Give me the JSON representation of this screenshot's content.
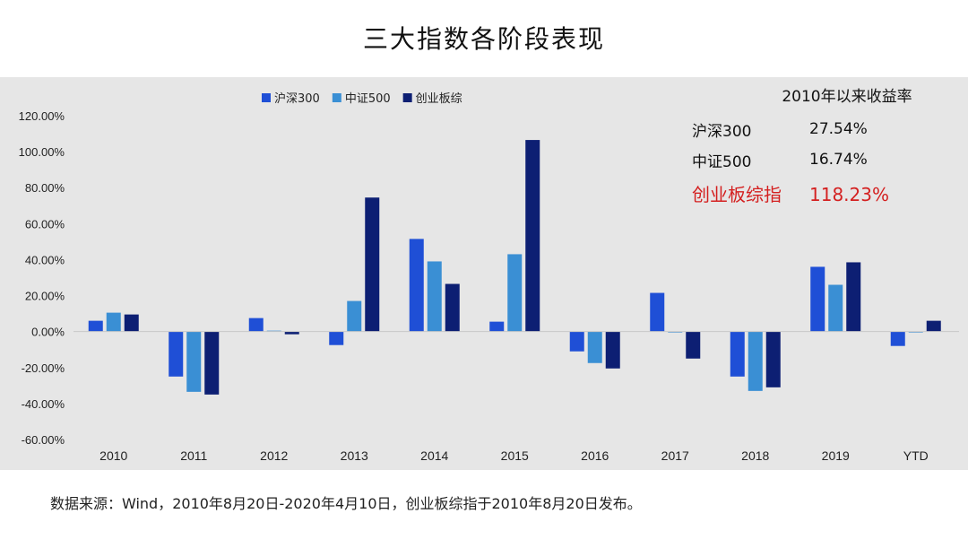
{
  "title": "三大指数各阶段表现",
  "source_note": "数据来源：Wind，2010年8月20日-2020年4月10日，创业板综指于2010年8月20日发布。",
  "summary": {
    "heading": "2010年以来收益率",
    "rows": [
      {
        "name": "沪深300",
        "value": "27.54%",
        "color": "#111111"
      },
      {
        "name": "中证500",
        "value": "16.74%",
        "color": "#111111"
      },
      {
        "name": "创业板综指",
        "value": "118.23%",
        "color": "#d42020"
      }
    ]
  },
  "chart_data": {
    "type": "bar",
    "categories": [
      "2010",
      "2011",
      "2012",
      "2013",
      "2014",
      "2015",
      "2016",
      "2017",
      "2018",
      "2019",
      "YTD"
    ],
    "series": [
      {
        "name": "沪深300",
        "color": "#1f4fd6",
        "values": [
          6,
          -25,
          7.5,
          -7.5,
          51.5,
          5.5,
          -11,
          21.5,
          -25,
          36,
          -8
        ]
      },
      {
        "name": "中证500",
        "color": "#3a8fd4",
        "values": [
          10.5,
          -33.5,
          0.5,
          17,
          39,
          43,
          -17.5,
          -0.5,
          -33,
          26,
          -0.5
        ]
      },
      {
        "name": "创业板综",
        "color": "#0d1f73",
        "values": [
          9.5,
          -35,
          -1.5,
          74.5,
          26.5,
          106.5,
          -20.5,
          -15,
          -31,
          38.5,
          6
        ]
      }
    ],
    "ylim": [
      -60,
      120
    ],
    "yticks": [
      "-60.00%",
      "-40.00%",
      "-20.00%",
      "0.00%",
      "20.00%",
      "40.00%",
      "60.00%",
      "80.00%",
      "100.00%",
      "120.00%"
    ],
    "ytick_values": [
      -60,
      -40,
      -20,
      0,
      20,
      40,
      60,
      80,
      100,
      120
    ],
    "legend_position": "top-center",
    "grid": false
  }
}
